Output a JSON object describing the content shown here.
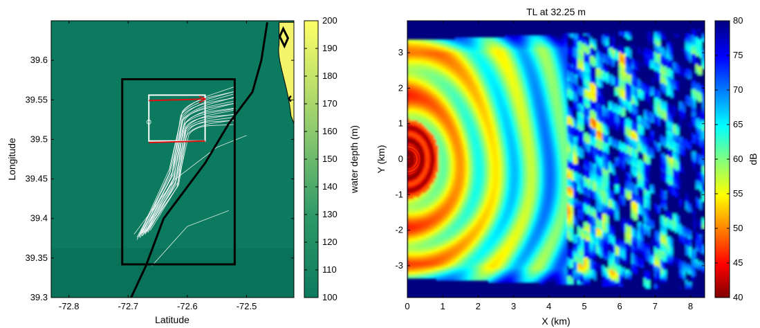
{
  "chart_data": [
    {
      "type": "heatmap",
      "xlabel": "Latitude",
      "ylabel": "Longitude",
      "xlim": [
        -72.83,
        -72.42
      ],
      "ylim": [
        39.3,
        39.65
      ],
      "xticks": [
        "-72.8",
        "-72.7",
        "-72.6",
        "-72.5"
      ],
      "xtick_values": [
        -72.8,
        -72.7,
        -72.6,
        -72.5
      ],
      "yticks": [
        "39.3",
        "39.35",
        "39.4",
        "39.45",
        "39.5",
        "39.55",
        "39.6"
      ],
      "ytick_values": [
        39.3,
        39.35,
        39.4,
        39.45,
        39.5,
        39.55,
        39.6
      ],
      "colorbar": {
        "label": "water depth (m)",
        "range": [
          100,
          200
        ],
        "ticks": [
          "100",
          "110",
          "120",
          "130",
          "140",
          "150",
          "160",
          "170",
          "180",
          "190",
          "200"
        ],
        "tick_values": [
          100,
          110,
          120,
          130,
          140,
          150,
          160,
          170,
          180,
          190,
          200
        ],
        "low_color": "#0c7a5e",
        "high_color": "#ffff66"
      },
      "background_depth": 100,
      "black_rectangle": {
        "lon": [
          -72.71,
          -72.52
        ],
        "lat": [
          39.342,
          39.576
        ]
      },
      "white_square": {
        "lon": [
          -72.665,
          -72.57
        ],
        "lat": [
          39.498,
          39.556
        ]
      },
      "red_arrows": [
        {
          "start": [
            -72.665,
            39.549
          ],
          "end": [
            -72.57,
            39.551
          ]
        },
        {
          "start": [
            -72.665,
            39.496
          ],
          "end": [
            -72.57,
            39.498
          ]
        }
      ],
      "black_line": [
        [
          -72.695,
          39.3
        ],
        [
          -72.67,
          39.34
        ],
        [
          -72.64,
          39.4
        ],
        [
          -72.61,
          39.43
        ],
        [
          -72.57,
          39.47
        ],
        [
          -72.53,
          39.52
        ],
        [
          -72.49,
          39.56
        ],
        [
          -72.475,
          39.6
        ],
        [
          -72.465,
          39.648
        ]
      ],
      "shallow_patch": {
        "depth": 200,
        "lon": [
          -72.445,
          -72.42
        ],
        "lat": [
          39.52,
          39.648
        ]
      }
    },
    {
      "type": "heatmap",
      "title": "TL at 32.25 m",
      "xlabel": "X (km)",
      "ylabel": "Y (km)",
      "xlim": [
        0,
        8.4
      ],
      "ylim": [
        -3.9,
        3.9
      ],
      "xticks": [
        "0",
        "1",
        "2",
        "3",
        "4",
        "5",
        "6",
        "7",
        "8"
      ],
      "xtick_values": [
        0,
        1,
        2,
        3,
        4,
        5,
        6,
        7,
        8
      ],
      "yticks": [
        "-3",
        "-2",
        "-1",
        "0",
        "1",
        "2",
        "3"
      ],
      "ytick_values": [
        -3,
        -2,
        -1,
        0,
        1,
        2,
        3
      ],
      "colorbar": {
        "label": "dB",
        "range": [
          40,
          80
        ],
        "ticks": [
          "40",
          "45",
          "50",
          "55",
          "60",
          "65",
          "70",
          "75",
          "80"
        ],
        "tick_values": [
          40,
          45,
          50,
          55,
          60,
          65,
          70,
          75,
          80
        ],
        "colormap": "jet (reversed)"
      },
      "source": {
        "x": 0,
        "y": 0
      }
    }
  ]
}
